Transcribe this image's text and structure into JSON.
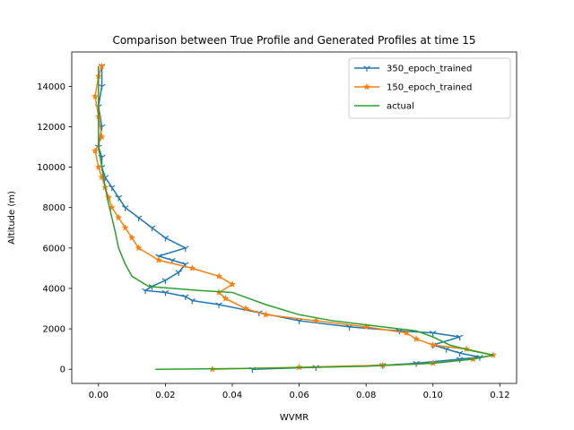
{
  "chart_data": {
    "type": "line",
    "title": "Comparison between True Profile and Generated Profiles at time 15",
    "xlabel": "WVMR",
    "ylabel": "Altitude (m)",
    "xlim": [
      -0.008,
      0.125
    ],
    "ylim": [
      -700,
      15700
    ],
    "x_ticks": [
      0.0,
      0.02,
      0.04,
      0.06,
      0.08,
      0.1,
      0.12
    ],
    "x_tick_labels": [
      "0.00",
      "0.02",
      "0.04",
      "0.06",
      "0.08",
      "0.10",
      "0.12"
    ],
    "y_ticks": [
      0,
      2000,
      4000,
      6000,
      8000,
      10000,
      12000,
      14000
    ],
    "y_tick_labels": [
      "0",
      "2000",
      "4000",
      "6000",
      "8000",
      "10000",
      "12000",
      "14000"
    ],
    "grid": false,
    "legend_position": "top-right",
    "series": [
      {
        "name": "350_epoch_trained",
        "color": "#1f77b4",
        "marker": "tri_down",
        "points": [
          [
            0.046,
            0
          ],
          [
            0.065,
            100
          ],
          [
            0.085,
            200
          ],
          [
            0.095,
            300
          ],
          [
            0.108,
            500
          ],
          [
            0.114,
            600
          ],
          [
            0.108,
            800
          ],
          [
            0.104,
            1000
          ],
          [
            0.1,
            1200
          ],
          [
            0.108,
            1600
          ],
          [
            0.1,
            1800
          ],
          [
            0.09,
            1900
          ],
          [
            0.075,
            2100
          ],
          [
            0.06,
            2400
          ],
          [
            0.048,
            2800
          ],
          [
            0.036,
            3200
          ],
          [
            0.028,
            3400
          ],
          [
            0.026,
            3600
          ],
          [
            0.02,
            3800
          ],
          [
            0.014,
            3900
          ],
          [
            0.016,
            4100
          ],
          [
            0.02,
            4400
          ],
          [
            0.024,
            4800
          ],
          [
            0.026,
            5200
          ],
          [
            0.022,
            5400
          ],
          [
            0.018,
            5600
          ],
          [
            0.026,
            6000
          ],
          [
            0.02,
            6500
          ],
          [
            0.016,
            7000
          ],
          [
            0.012,
            7500
          ],
          [
            0.008,
            8000
          ],
          [
            0.006,
            8500
          ],
          [
            0.004,
            9000
          ],
          [
            0.002,
            9500
          ],
          [
            0.001,
            10000
          ],
          [
            0.001,
            10500
          ],
          [
            0.0,
            11000
          ],
          [
            0.001,
            12000
          ],
          [
            0.0,
            13000
          ],
          [
            0.001,
            14000
          ],
          [
            0.001,
            15000
          ]
        ]
      },
      {
        "name": "150_epoch_trained",
        "color": "#ff7f0e",
        "marker": "star",
        "points": [
          [
            0.034,
            0
          ],
          [
            0.06,
            100
          ],
          [
            0.085,
            200
          ],
          [
            0.1,
            300
          ],
          [
            0.112,
            500
          ],
          [
            0.118,
            700
          ],
          [
            0.11,
            1000
          ],
          [
            0.1,
            1200
          ],
          [
            0.095,
            1500
          ],
          [
            0.092,
            1800
          ],
          [
            0.08,
            2100
          ],
          [
            0.065,
            2400
          ],
          [
            0.05,
            2700
          ],
          [
            0.044,
            3000
          ],
          [
            0.038,
            3500
          ],
          [
            0.036,
            3800
          ],
          [
            0.04,
            4200
          ],
          [
            0.036,
            4600
          ],
          [
            0.028,
            5000
          ],
          [
            0.018,
            5400
          ],
          [
            0.012,
            6000
          ],
          [
            0.01,
            6500
          ],
          [
            0.008,
            7000
          ],
          [
            0.006,
            7500
          ],
          [
            0.004,
            8000
          ],
          [
            0.003,
            8500
          ],
          [
            0.002,
            9000
          ],
          [
            0.001,
            9500
          ],
          [
            0.0,
            10000
          ],
          [
            -0.001,
            10800
          ],
          [
            0.001,
            11500
          ],
          [
            0.0,
            12500
          ],
          [
            -0.001,
            13500
          ],
          [
            0.0,
            14500
          ],
          [
            0.001,
            15000
          ]
        ]
      },
      {
        "name": "actual",
        "color": "#2ca02c",
        "marker": "none",
        "points": [
          [
            0.017,
            0
          ],
          [
            0.05,
            50
          ],
          [
            0.08,
            150
          ],
          [
            0.1,
            300
          ],
          [
            0.112,
            500
          ],
          [
            0.118,
            700
          ],
          [
            0.112,
            900
          ],
          [
            0.105,
            1200
          ],
          [
            0.1,
            1600
          ],
          [
            0.095,
            1900
          ],
          [
            0.085,
            2100
          ],
          [
            0.07,
            2400
          ],
          [
            0.06,
            2700
          ],
          [
            0.05,
            3200
          ],
          [
            0.04,
            3800
          ],
          [
            0.03,
            3900
          ],
          [
            0.015,
            4100
          ],
          [
            0.01,
            4600
          ],
          [
            0.008,
            5200
          ],
          [
            0.006,
            6000
          ],
          [
            0.005,
            6800
          ],
          [
            0.004,
            7500
          ],
          [
            0.003,
            8200
          ],
          [
            0.002,
            9000
          ],
          [
            0.001,
            10000
          ],
          [
            0.0,
            11000
          ],
          [
            0.0,
            12000
          ],
          [
            0.0,
            13000
          ],
          [
            0.0,
            14000
          ],
          [
            0.0,
            15000
          ]
        ]
      }
    ]
  }
}
